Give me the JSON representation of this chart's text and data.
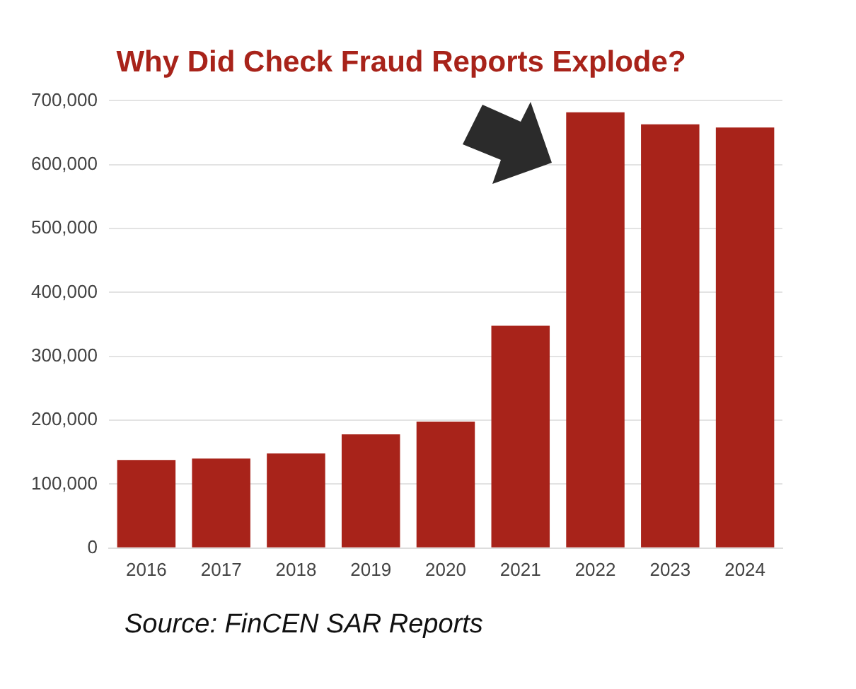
{
  "chart_data": {
    "type": "bar",
    "title": "Why Did Check Fraud Reports Explode?",
    "categories": [
      "2016",
      "2017",
      "2018",
      "2019",
      "2020",
      "2021",
      "2022",
      "2023",
      "2024"
    ],
    "values": [
      138000,
      140000,
      148000,
      178000,
      198000,
      348000,
      682000,
      663000,
      658000
    ],
    "color": "#a8231a",
    "ylim": [
      0,
      700000
    ],
    "yticks": [
      0,
      {
        "value": 100000,
        "label": "100,000"
      },
      {
        "value": 200000,
        "label": "200,000"
      },
      {
        "value": 300000,
        "label": "300,000"
      },
      {
        "value": 400000,
        "label": "400,000"
      },
      {
        "value": 500000,
        "label": "500,000"
      },
      {
        "value": 600000,
        "label": "600,000"
      },
      {
        "value": 700000,
        "label": "700,000"
      }
    ],
    "grid": "y",
    "legend": false,
    "annotations": [
      "Source: FinCEN SAR Reports"
    ]
  }
}
